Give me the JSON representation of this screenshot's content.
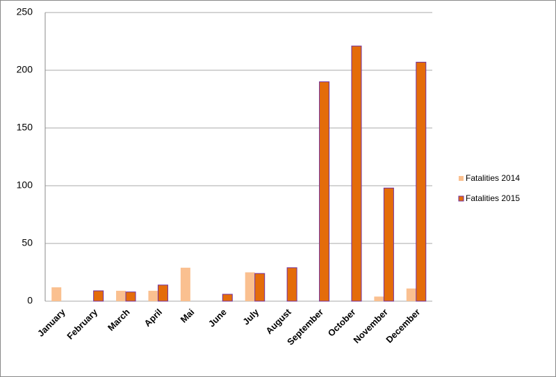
{
  "chart_data": {
    "type": "bar",
    "categories": [
      "January",
      "February",
      "March",
      "April",
      "Mai",
      "June",
      "July",
      "August",
      "September",
      "October",
      "November",
      "December"
    ],
    "series": [
      {
        "name": "Fatalities 2014",
        "color": "#fac090",
        "values": [
          12,
          0,
          9,
          9,
          29,
          0,
          25,
          0,
          0,
          0,
          4,
          11
        ]
      },
      {
        "name": "Fatalities 2015",
        "color": "#e46c0a",
        "values": [
          0,
          9,
          8,
          14,
          0,
          6,
          24,
          29,
          190,
          221,
          98,
          207
        ]
      }
    ],
    "ylim": [
      0,
      250
    ],
    "yticks": [
      0,
      50,
      100,
      150,
      200,
      250
    ],
    "grid": true,
    "legend": "right"
  }
}
